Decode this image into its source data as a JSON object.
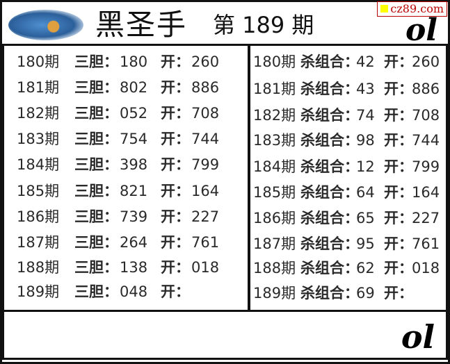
{
  "header": {
    "title": "黑圣手",
    "issue": "第 189 期",
    "site_badge": "cz89.com",
    "signature": "ol"
  },
  "left_table": {
    "label": "三胆：",
    "open_label": "开：",
    "rows": [
      {
        "period": "180期",
        "value": "180",
        "open": "260"
      },
      {
        "period": "181期",
        "value": "802",
        "open": "886"
      },
      {
        "period": "182期",
        "value": "052",
        "open": "708"
      },
      {
        "period": "183期",
        "value": "754",
        "open": "744"
      },
      {
        "period": "184期",
        "value": "398",
        "open": "799"
      },
      {
        "period": "185期",
        "value": "821",
        "open": "164"
      },
      {
        "period": "186期",
        "value": "739",
        "open": "227"
      },
      {
        "period": "187期",
        "value": "264",
        "open": "761"
      },
      {
        "period": "188期",
        "value": "138",
        "open": "018"
      },
      {
        "period": "189期",
        "value": "048",
        "open": ""
      }
    ]
  },
  "right_table": {
    "label": "杀组合：",
    "open_label": "开：",
    "rows": [
      {
        "period": "180期",
        "value": "42",
        "open": "260"
      },
      {
        "period": "181期",
        "value": "43",
        "open": "886"
      },
      {
        "period": "182期",
        "value": "74",
        "open": "708"
      },
      {
        "period": "183期",
        "value": "98",
        "open": "744"
      },
      {
        "period": "184期",
        "value": "12",
        "open": "799"
      },
      {
        "period": "185期",
        "value": "64",
        "open": "164"
      },
      {
        "period": "186期",
        "value": "65",
        "open": "227"
      },
      {
        "period": "187期",
        "value": "95",
        "open": "761"
      },
      {
        "period": "188期",
        "value": "62",
        "open": "018"
      },
      {
        "period": "189期",
        "value": "69",
        "open": ""
      }
    ]
  },
  "footer": {
    "signature": "ol"
  }
}
